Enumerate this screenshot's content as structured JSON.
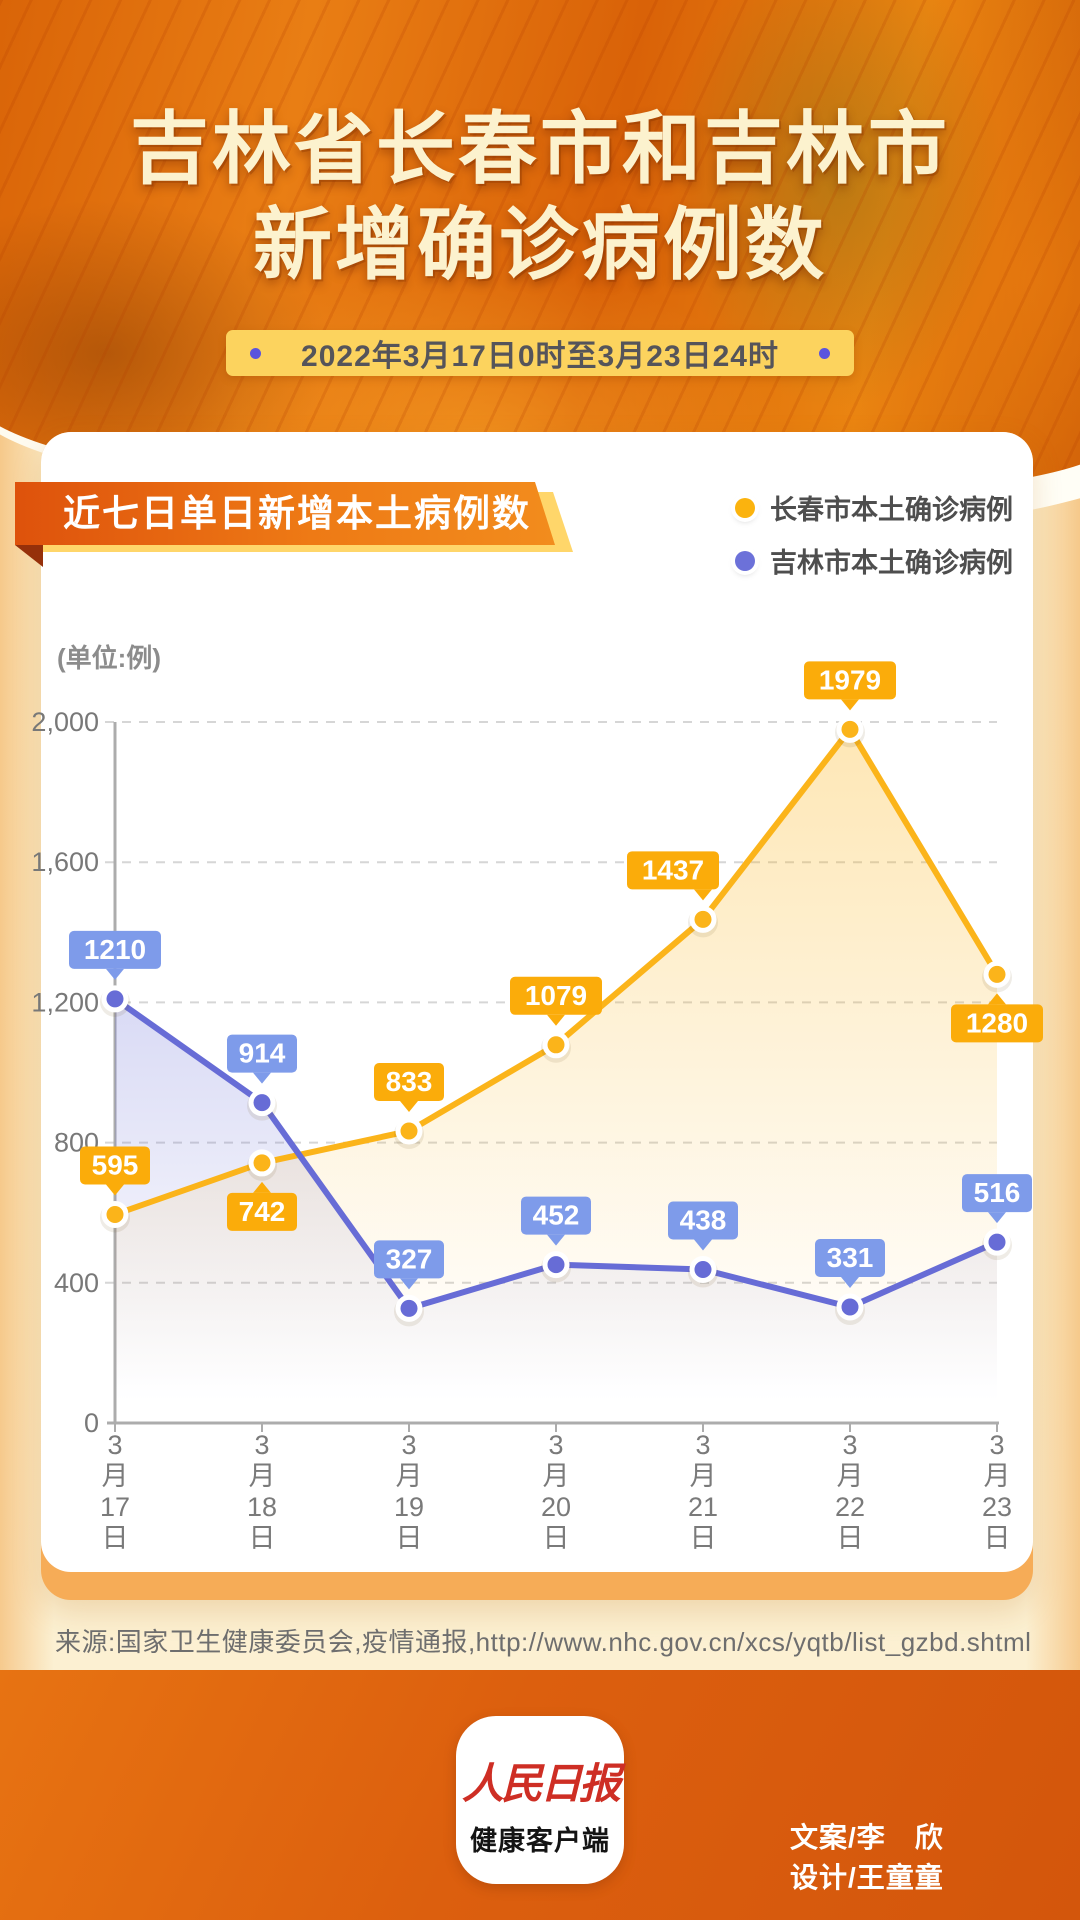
{
  "header": {
    "title_line1": "吉林省长春市和吉林市",
    "title_line2": "新增确诊病例数",
    "date_range": "2022年3月17日0时至3月23日24时"
  },
  "panel": {
    "banner": "近七日单日新增本土病例数",
    "unit_label": "(单位:例)"
  },
  "legend": [
    {
      "label": "长春市本土确诊病例",
      "color": "#FBB30E"
    },
    {
      "label": "吉林市本土确诊病例",
      "color": "#6C71D9"
    }
  ],
  "chart_data": {
    "type": "line",
    "categories": [
      "3月17日",
      "3月18日",
      "3月19日",
      "3月20日",
      "3月21日",
      "3月22日",
      "3月23日"
    ],
    "series": [
      {
        "name": "长春市本土确诊病例",
        "color": "#FBB41A",
        "badge_color": "#FBAC0A",
        "values": [
          595,
          742,
          833,
          1079,
          1437,
          1979,
          1280
        ],
        "label_below_indices": [
          1,
          6
        ]
      },
      {
        "name": "吉林市本土确诊病例",
        "color": "#676CD6",
        "badge_color": "#7E9BEA",
        "values": [
          1210,
          914,
          327,
          452,
          438,
          331,
          516
        ],
        "label_below_indices": []
      }
    ],
    "ylim": [
      0,
      2000
    ],
    "yticks": [
      0,
      400,
      800,
      1200,
      1600,
      2000
    ],
    "ytick_labels": [
      "0",
      "400",
      "800",
      "1,200",
      "1,600",
      "2,000"
    ],
    "grid": "dashed horizontal",
    "legend_position": "top-right",
    "area_fill": true,
    "title": "近七日单日新增本土病例数",
    "xlabel": "",
    "ylabel": "(单位:例)"
  },
  "source": "来源:国家卫生健康委员会,疫情通报,http://www.nhc.gov.cn/xcs/yqtb/list_gzbd.shtml",
  "footer": {
    "logo_line1": "人民日报",
    "logo_line2": "健康客户端",
    "credit_line1": "文案/李　欣",
    "credit_line2": "设计/王童童"
  }
}
